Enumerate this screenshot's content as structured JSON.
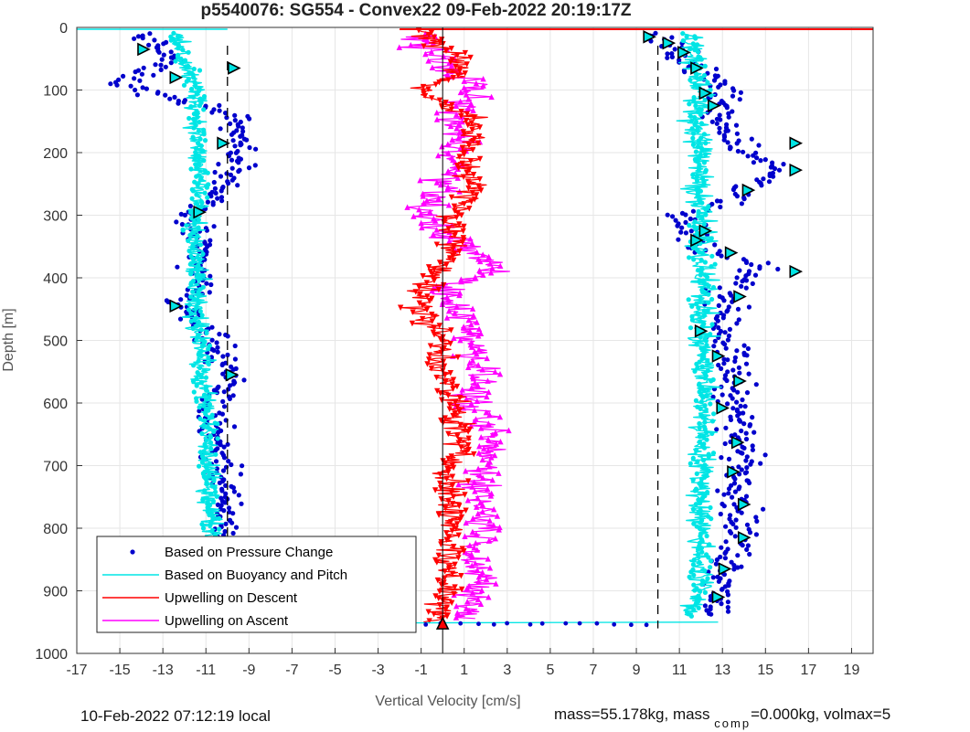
{
  "chart_data": {
    "type": "scatter",
    "title": "p5540076: SG554 - Convex22 09-Feb-2022 20:19:17Z",
    "xlabel": "Vertical Velocity [cm/s]",
    "ylabel": "Depth [m]",
    "xlim": [
      -17,
      20
    ],
    "ylim": [
      0,
      1000
    ],
    "y_reversed": true,
    "grid": true,
    "x_ticks": [
      -17,
      -15,
      -13,
      -11,
      -9,
      -7,
      -5,
      -3,
      -1,
      1,
      3,
      5,
      7,
      9,
      11,
      13,
      15,
      17,
      19
    ],
    "y_ticks": [
      0,
      100,
      200,
      300,
      400,
      500,
      600,
      700,
      800,
      900,
      1000
    ],
    "legend_position": "bottom-left",
    "series": [
      {
        "name": "Based on Pressure Change",
        "color": "#0000cc",
        "style": "dots"
      },
      {
        "name": "Based on Buoyancy and Pitch",
        "color": "#00e5e5",
        "style": "line"
      },
      {
        "name": "Upwelling on Descent",
        "color": "#ff0000",
        "style": "line-down-triangles"
      },
      {
        "name": "Upwelling on Ascent",
        "color": "#ff00ff",
        "style": "line-up-triangles"
      }
    ],
    "profiles": {
      "descent_velocity": {
        "pressure_mean": [
          [
            10,
            -14.0
          ],
          [
            50,
            -12.6
          ],
          [
            90,
            -15.0
          ],
          [
            140,
            -9.5
          ],
          [
            180,
            -9.4
          ],
          [
            230,
            -9.5
          ],
          [
            280,
            -11.0
          ],
          [
            300,
            -11.8
          ],
          [
            350,
            -11.4
          ],
          [
            420,
            -11.3
          ],
          [
            445,
            -12.5
          ],
          [
            480,
            -10.8
          ],
          [
            520,
            -10.5
          ],
          [
            550,
            -9.6
          ],
          [
            600,
            -10.7
          ],
          [
            700,
            -10.3
          ],
          [
            800,
            -10.1
          ],
          [
            900,
            -10.0
          ],
          [
            950,
            -10.3
          ]
        ],
        "buoyancy_mean": [
          [
            10,
            -12.5
          ],
          [
            60,
            -12.0
          ],
          [
            100,
            -11.4
          ],
          [
            150,
            -11.4
          ],
          [
            200,
            -11.4
          ],
          [
            250,
            -11.2
          ],
          [
            300,
            -11.6
          ],
          [
            350,
            -11.5
          ],
          [
            400,
            -11.4
          ],
          [
            450,
            -11.6
          ],
          [
            500,
            -11.2
          ],
          [
            560,
            -11.2
          ],
          [
            600,
            -11.0
          ],
          [
            700,
            -10.9
          ],
          [
            800,
            -10.7
          ],
          [
            900,
            -10.5
          ],
          [
            950,
            -10.4
          ]
        ]
      },
      "ascent_velocity": {
        "pressure_mean": [
          [
            10,
            9.8
          ],
          [
            40,
            11.0
          ],
          [
            100,
            13.0
          ],
          [
            150,
            13.0
          ],
          [
            200,
            14.2
          ],
          [
            230,
            15.6
          ],
          [
            270,
            13.8
          ],
          [
            300,
            11.0
          ],
          [
            350,
            11.6
          ],
          [
            385,
            15.0
          ],
          [
            420,
            13.2
          ],
          [
            500,
            13.2
          ],
          [
            560,
            13.6
          ],
          [
            600,
            13.6
          ],
          [
            700,
            14.0
          ],
          [
            800,
            13.8
          ],
          [
            900,
            13.0
          ],
          [
            940,
            12.8
          ]
        ],
        "buoyancy_mean": [
          [
            10,
            11.5
          ],
          [
            60,
            11.8
          ],
          [
            100,
            12.0
          ],
          [
            150,
            11.8
          ],
          [
            200,
            12.0
          ],
          [
            250,
            11.8
          ],
          [
            300,
            12.0
          ],
          [
            350,
            12.0
          ],
          [
            400,
            12.2
          ],
          [
            450,
            12.0
          ],
          [
            500,
            12.0
          ],
          [
            560,
            12.2
          ],
          [
            600,
            12.2
          ],
          [
            700,
            12.0
          ],
          [
            800,
            12.0
          ],
          [
            900,
            12.0
          ],
          [
            940,
            11.4
          ]
        ]
      },
      "upwelling_descent_mean": [
        [
          5,
          -1.0
        ],
        [
          20,
          -0.5
        ],
        [
          50,
          1.0
        ],
        [
          80,
          0.5
        ],
        [
          95,
          -1.0
        ],
        [
          120,
          0.0
        ],
        [
          150,
          1.5
        ],
        [
          200,
          1.0
        ],
        [
          250,
          1.5
        ],
        [
          300,
          0.5
        ],
        [
          350,
          0.5
        ],
        [
          385,
          0.2
        ],
        [
          420,
          -1.0
        ],
        [
          450,
          -1.0
        ],
        [
          500,
          0.0
        ],
        [
          560,
          0.0
        ],
        [
          600,
          0.5
        ],
        [
          650,
          0.8
        ],
        [
          700,
          0.5
        ],
        [
          750,
          0.3
        ],
        [
          800,
          0.5
        ],
        [
          850,
          0.3
        ],
        [
          900,
          0.2
        ],
        [
          950,
          -0.2
        ]
      ],
      "upwelling_ascent_mean": [
        [
          10,
          -1.0
        ],
        [
          50,
          -0.5
        ],
        [
          90,
          1.5
        ],
        [
          150,
          0.5
        ],
        [
          200,
          0.8
        ],
        [
          255,
          0.0
        ],
        [
          300,
          -1.0
        ],
        [
          350,
          1.0
        ],
        [
          385,
          2.5
        ],
        [
          420,
          0.0
        ],
        [
          450,
          0.8
        ],
        [
          500,
          1.5
        ],
        [
          560,
          1.8
        ],
        [
          600,
          1.2
        ],
        [
          650,
          2.2
        ],
        [
          700,
          2.0
        ],
        [
          750,
          1.8
        ],
        [
          800,
          2.0
        ],
        [
          850,
          1.6
        ],
        [
          900,
          1.5
        ],
        [
          945,
          1.0
        ]
      ]
    },
    "markers": {
      "descent": [
        {
          "depth": 35,
          "value": -13.9
        },
        {
          "depth": 80,
          "value": -12.4
        },
        {
          "depth": 65,
          "value": -9.7
        },
        {
          "depth": 185,
          "value": -10.2
        },
        {
          "depth": 295,
          "value": -11.3
        },
        {
          "depth": 445,
          "value": -12.4
        },
        {
          "depth": 555,
          "value": -9.8
        },
        {
          "depth": 950,
          "value": -10.4
        }
      ],
      "ascent": [
        {
          "depth": 15,
          "value": 9.6
        },
        {
          "depth": 25,
          "value": 10.5
        },
        {
          "depth": 40,
          "value": 11.2
        },
        {
          "depth": 65,
          "value": 11.8
        },
        {
          "depth": 105,
          "value": 12.2
        },
        {
          "depth": 125,
          "value": 12.6
        },
        {
          "depth": 185,
          "value": 16.4
        },
        {
          "depth": 228,
          "value": 16.4
        },
        {
          "depth": 260,
          "value": 14.2
        },
        {
          "depth": 325,
          "value": 12.2
        },
        {
          "depth": 340,
          "value": 11.8
        },
        {
          "depth": 360,
          "value": 13.4
        },
        {
          "depth": 390,
          "value": 16.4
        },
        {
          "depth": 430,
          "value": 13.8
        },
        {
          "depth": 485,
          "value": 12.0
        },
        {
          "depth": 525,
          "value": 12.8
        },
        {
          "depth": 565,
          "value": 13.8
        },
        {
          "depth": 608,
          "value": 13.0
        },
        {
          "depth": 663,
          "value": 13.7
        },
        {
          "depth": 710,
          "value": 13.5
        },
        {
          "depth": 762,
          "value": 14.0
        },
        {
          "depth": 815,
          "value": 14.0
        },
        {
          "depth": 865,
          "value": 13.1
        },
        {
          "depth": 910,
          "value": 12.8
        }
      ],
      "bottom_up_triangles": [
        {
          "depth": 952,
          "value": -10.4
        },
        {
          "depth": 952,
          "value": 0.0
        }
      ]
    },
    "reference_lines": {
      "vertical_solid": [
        0
      ],
      "vertical_dashed": [
        -10,
        10
      ]
    },
    "surface_line": {
      "depth": 3,
      "from": -2,
      "to": 20,
      "color": "#ff0000"
    }
  },
  "footer": {
    "local_time": "10-Feb-2022 07:12:19 local",
    "mass_text": "mass=55.178kg, mass",
    "mass_comp_sub": "comp",
    "mass_comp_text": "=0.000kg, volmax=5"
  }
}
